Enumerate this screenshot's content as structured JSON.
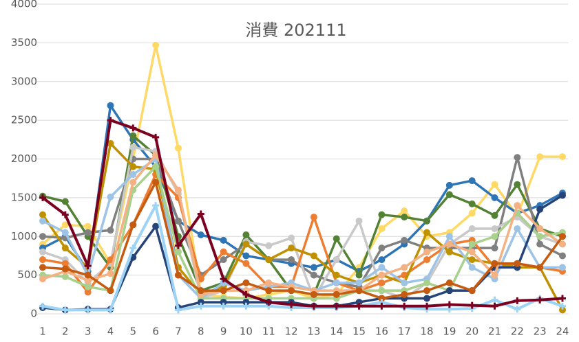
{
  "chart_data": {
    "type": "line",
    "title": "消費 202111",
    "categories": [
      1,
      2,
      3,
      4,
      5,
      6,
      7,
      8,
      9,
      10,
      11,
      12,
      13,
      14,
      15,
      16,
      17,
      18,
      19,
      20,
      21,
      22,
      23,
      24
    ],
    "ylim": [
      0,
      4000
    ],
    "yticks": [
      0,
      500,
      1000,
      1500,
      2000,
      2500,
      3000,
      3500,
      4000
    ],
    "grid": true,
    "series": [
      {
        "color": "#ffd966",
        "values": [
          900,
          1150,
          1130,
          650,
          2000,
          3470,
          2140,
          250,
          220,
          200,
          250,
          300,
          200,
          250,
          600,
          1100,
          1330,
          1000,
          1050,
          1300,
          1670,
          1270,
          2030,
          2030
        ]
      },
      {
        "color": "#2e75b6",
        "values": [
          850,
          1000,
          550,
          2690,
          2250,
          1900,
          1200,
          1020,
          950,
          750,
          700,
          650,
          600,
          700,
          550,
          700,
          900,
          1200,
          1660,
          1720,
          1500,
          1300,
          1400,
          1560
        ]
      },
      {
        "color": "#548235",
        "values": [
          1520,
          1450,
          1000,
          600,
          2300,
          2050,
          1000,
          300,
          400,
          1020,
          700,
          300,
          250,
          970,
          500,
          1280,
          1250,
          1200,
          1540,
          1420,
          1270,
          1670,
          1100,
          1000
        ]
      },
      {
        "color": "#808080",
        "values": [
          1000,
          980,
          1050,
          1080,
          2000,
          2000,
          1200,
          500,
          700,
          900,
          700,
          700,
          500,
          400,
          350,
          850,
          950,
          850,
          850,
          850,
          850,
          2020,
          900,
          750
        ]
      },
      {
        "color": "#c9c9c9",
        "values": [
          800,
          700,
          400,
          650,
          2150,
          2100,
          1550,
          200,
          300,
          930,
          880,
          980,
          200,
          700,
          1200,
          300,
          200,
          400,
          900,
          1100,
          1100,
          1250,
          1000,
          900
        ]
      },
      {
        "color": "#ed7d31",
        "values": [
          700,
          650,
          280,
          700,
          1150,
          1800,
          1500,
          450,
          800,
          650,
          350,
          350,
          1250,
          400,
          300,
          400,
          500,
          700,
          900,
          950,
          600,
          650,
          600,
          550
        ]
      },
      {
        "color": "#bf9000",
        "values": [
          1280,
          850,
          600,
          2200,
          1900,
          1870,
          600,
          250,
          350,
          900,
          700,
          850,
          750,
          500,
          400,
          500,
          400,
          1050,
          800,
          700,
          650,
          600,
          600,
          50
        ]
      },
      {
        "color": "#9dc3e6",
        "values": [
          1200,
          1050,
          500,
          1510,
          1800,
          2000,
          500,
          200,
          400,
          300,
          350,
          400,
          300,
          400,
          400,
          600,
          400,
          450,
          1000,
          600,
          450,
          1100,
          600,
          600
        ]
      },
      {
        "color": "#a9d18e",
        "values": [
          500,
          480,
          350,
          300,
          1600,
          1900,
          800,
          200,
          200,
          200,
          200,
          200,
          200,
          200,
          300,
          300,
          300,
          400,
          300,
          900,
          1000,
          1300,
          1000,
          1050
        ]
      },
      {
        "color": "#264478",
        "values": [
          80,
          50,
          60,
          60,
          730,
          1130,
          80,
          150,
          150,
          150,
          150,
          150,
          100,
          100,
          150,
          200,
          200,
          200,
          300,
          300,
          600,
          600,
          1350,
          1530
        ]
      },
      {
        "color": "#f4b183",
        "values": [
          450,
          550,
          430,
          520,
          1700,
          2050,
          1600,
          250,
          300,
          300,
          400,
          350,
          300,
          300,
          300,
          500,
          600,
          800,
          900,
          800,
          500,
          1400,
          1100,
          900
        ]
      },
      {
        "color": "#c55a11",
        "values": [
          600,
          580,
          500,
          300,
          1150,
          1700,
          500,
          300,
          300,
          400,
          300,
          300,
          250,
          250,
          300,
          200,
          250,
          300,
          400,
          300,
          650,
          650,
          600,
          1000
        ]
      },
      {
        "color": "#9dd3f5",
        "marker": "plus",
        "values": [
          100,
          50,
          50,
          50,
          850,
          1400,
          50,
          100,
          100,
          100,
          100,
          80,
          80,
          80,
          100,
          150,
          80,
          60,
          60,
          70,
          180,
          60,
          200,
          100
        ]
      },
      {
        "color": "#7b0020",
        "marker": "plus",
        "values": [
          1500,
          1280,
          620,
          2500,
          2400,
          2280,
          880,
          1290,
          450,
          250,
          150,
          120,
          100,
          100,
          100,
          100,
          100,
          100,
          120,
          110,
          100,
          170,
          180,
          200
        ]
      }
    ]
  }
}
